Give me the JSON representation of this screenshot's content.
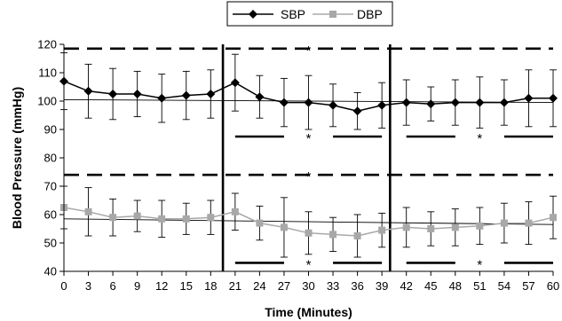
{
  "chart_data": {
    "type": "line",
    "title": "",
    "xlabel": "Time (Minutes)",
    "ylabel": "Blood Pressure (mmHg)",
    "xlim": [
      0,
      60
    ],
    "ylim": [
      40,
      120
    ],
    "x_ticks": [
      "0",
      "3",
      "6",
      "9",
      "12",
      "15",
      "18",
      "21",
      "24",
      "27",
      "30",
      "33",
      "36",
      "39",
      "42",
      "45",
      "48",
      "51",
      "54",
      "57",
      "60"
    ],
    "y_ticks": [
      "40",
      "50",
      "60",
      "70",
      "80",
      "90",
      "100",
      "110",
      "120"
    ],
    "legend_position": "top-center",
    "x": [
      0,
      3,
      6,
      9,
      12,
      15,
      18,
      21,
      24,
      27,
      30,
      33,
      36,
      39,
      42,
      45,
      48,
      51,
      54,
      57,
      60
    ],
    "series": [
      {
        "name": "SBP",
        "marker": "diamond",
        "color": "#000000",
        "values": [
          107,
          103.5,
          102.5,
          102.5,
          101,
          102,
          102.5,
          106.5,
          101.5,
          99.5,
          99.5,
          98.5,
          96.5,
          98.5,
          99.5,
          99,
          99.5,
          99.5,
          99.5,
          101,
          101
        ],
        "error": [
          10,
          9.5,
          9,
          8,
          8.5,
          8.5,
          8.5,
          10,
          7.5,
          8.5,
          9.5,
          7.5,
          6.5,
          8,
          8,
          6,
          8,
          9,
          8,
          10,
          10
        ],
        "trend": [
          100.5,
          99.5
        ]
      },
      {
        "name": "DBP",
        "marker": "square",
        "color": "#a8a8a8",
        "values": [
          62.5,
          61,
          59,
          59.5,
          58.5,
          58.5,
          59,
          61,
          57,
          55.5,
          53.5,
          53,
          52.5,
          54.5,
          55.5,
          55,
          55.5,
          56,
          57,
          57,
          59
        ],
        "error": [
          7.5,
          8.5,
          6.5,
          5.5,
          6.5,
          5.5,
          6,
          6.5,
          6,
          10.5,
          7.5,
          6,
          7.5,
          6,
          7,
          6,
          6.5,
          6.5,
          7,
          7.5,
          7.5
        ],
        "trend": [
          58.5,
          56.5
        ]
      }
    ],
    "vertical_lines_x": [
      19.5,
      40
    ],
    "dashed_lines_y": [
      118.5,
      74
    ],
    "significance_segments": [
      {
        "y": 87.5,
        "x": [
          [
            21,
            27
          ],
          [
            33,
            39
          ],
          [
            42,
            48
          ],
          [
            54,
            60
          ]
        ]
      },
      {
        "y": 43,
        "x": [
          [
            21,
            27
          ],
          [
            33,
            39
          ],
          [
            42,
            48
          ],
          [
            54,
            60
          ]
        ]
      }
    ],
    "annotations": [
      {
        "text": "*",
        "x": 30,
        "y": 118.5
      },
      {
        "text": "*",
        "x": 30,
        "y": 87.5
      },
      {
        "text": "*",
        "x": 51,
        "y": 87.5
      },
      {
        "text": "*",
        "x": 30,
        "y": 74
      },
      {
        "text": "*",
        "x": 30,
        "y": 43
      },
      {
        "text": "*",
        "x": 51,
        "y": 43
      }
    ]
  }
}
